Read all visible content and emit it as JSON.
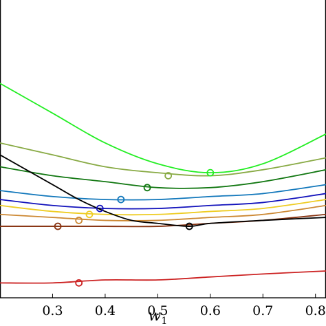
{
  "chart_data": {
    "type": "line",
    "xlabel": "w",
    "xlabel_subscript": "1",
    "xlim": [
      0.2,
      0.82
    ],
    "ylim": [
      0,
      1
    ],
    "x_ticks": [
      0.3,
      0.4,
      0.5,
      0.6,
      0.7,
      0.8
    ],
    "x_tick_labels": [
      "0.3",
      "0.4",
      "0.5",
      "0.6",
      "0.7",
      "0.8"
    ],
    "grid": false,
    "legend": "none",
    "series": [
      {
        "color": "#22ee22",
        "x": [
          0.2,
          0.3,
          0.4,
          0.5,
          0.6,
          0.7,
          0.82
        ],
        "y": [
          0.72,
          0.62,
          0.52,
          0.45,
          0.42,
          0.45,
          0.55
        ],
        "min_marker": [
          0.6,
          0.42
        ]
      },
      {
        "color": "#88aa44",
        "x": [
          0.2,
          0.3,
          0.4,
          0.5,
          0.6,
          0.7,
          0.82
        ],
        "y": [
          0.52,
          0.48,
          0.44,
          0.42,
          0.41,
          0.43,
          0.47
        ],
        "min_marker": [
          0.52,
          0.41
        ]
      },
      {
        "color": "#117711",
        "x": [
          0.2,
          0.3,
          0.4,
          0.5,
          0.6,
          0.7,
          0.82
        ],
        "y": [
          0.44,
          0.41,
          0.39,
          0.37,
          0.37,
          0.39,
          0.43
        ],
        "min_marker": [
          0.48,
          0.37
        ]
      },
      {
        "color": "#1177bb",
        "x": [
          0.2,
          0.3,
          0.4,
          0.5,
          0.6,
          0.7,
          0.82
        ],
        "y": [
          0.36,
          0.34,
          0.33,
          0.33,
          0.34,
          0.35,
          0.38
        ],
        "min_marker": [
          0.43,
          0.33
        ]
      },
      {
        "color": "#1111bb",
        "x": [
          0.2,
          0.3,
          0.4,
          0.5,
          0.6,
          0.7,
          0.82
        ],
        "y": [
          0.33,
          0.31,
          0.3,
          0.3,
          0.31,
          0.32,
          0.35
        ],
        "min_marker": [
          0.39,
          0.3
        ]
      },
      {
        "color": "#eecc22",
        "x": [
          0.2,
          0.3,
          0.4,
          0.5,
          0.6,
          0.7,
          0.82
        ],
        "y": [
          0.31,
          0.29,
          0.28,
          0.28,
          0.29,
          0.3,
          0.33
        ],
        "min_marker": [
          0.37,
          0.28
        ]
      },
      {
        "color": "#cc8833",
        "x": [
          0.2,
          0.3,
          0.4,
          0.5,
          0.6,
          0.7,
          0.82
        ],
        "y": [
          0.28,
          0.27,
          0.26,
          0.26,
          0.27,
          0.28,
          0.31
        ],
        "min_marker": [
          0.35,
          0.26
        ]
      },
      {
        "color": "#883311",
        "x": [
          0.2,
          0.3,
          0.4,
          0.5,
          0.6,
          0.7,
          0.82
        ],
        "y": [
          0.24,
          0.24,
          0.24,
          0.24,
          0.25,
          0.26,
          0.28
        ],
        "min_marker": [
          0.31,
          0.24
        ]
      },
      {
        "color": "#000000",
        "x": [
          0.2,
          0.3,
          0.35,
          0.4,
          0.45,
          0.5,
          0.56,
          0.6,
          0.7,
          0.82
        ],
        "y": [
          0.48,
          0.38,
          0.33,
          0.29,
          0.26,
          0.25,
          0.24,
          0.25,
          0.26,
          0.27
        ],
        "min_marker": [
          0.56,
          0.24
        ]
      },
      {
        "color": "#cc2222",
        "x": [
          0.2,
          0.3,
          0.4,
          0.5,
          0.6,
          0.7,
          0.82
        ],
        "y": [
          0.05,
          0.05,
          0.06,
          0.06,
          0.07,
          0.08,
          0.09
        ],
        "min_marker": [
          0.35,
          0.05
        ]
      }
    ]
  }
}
